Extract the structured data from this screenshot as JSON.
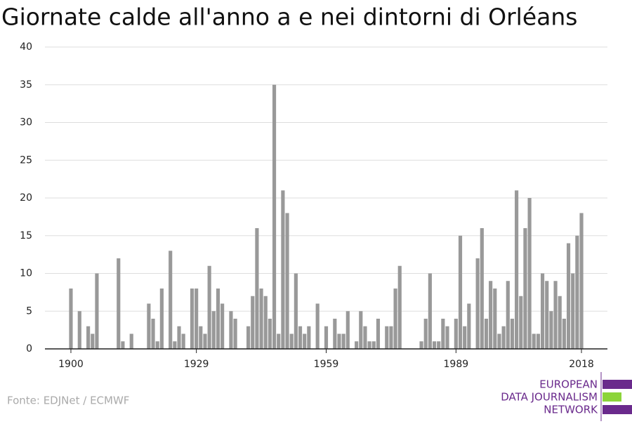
{
  "chart_data": {
    "type": "bar",
    "title": "Giornate calde all'anno a e nei dintorni di Orléans",
    "x": [
      1900,
      1902,
      1904,
      1905,
      1906,
      1911,
      1912,
      1914,
      1918,
      1919,
      1920,
      1921,
      1923,
      1924,
      1925,
      1926,
      1928,
      1929,
      1930,
      1931,
      1932,
      1933,
      1934,
      1935,
      1937,
      1938,
      1941,
      1942,
      1943,
      1944,
      1945,
      1946,
      1947,
      1948,
      1949,
      1950,
      1951,
      1952,
      1953,
      1954,
      1955,
      1957,
      1959,
      1961,
      1962,
      1963,
      1964,
      1966,
      1967,
      1968,
      1969,
      1970,
      1971,
      1973,
      1974,
      1975,
      1976,
      1981,
      1982,
      1983,
      1984,
      1985,
      1986,
      1987,
      1989,
      1990,
      1991,
      1992,
      1994,
      1995,
      1996,
      1997,
      1998,
      1999,
      2000,
      2001,
      2002,
      2003,
      2004,
      2005,
      2006,
      2007,
      2008,
      2009,
      2010,
      2011,
      2012,
      2013,
      2014,
      2015,
      2016,
      2017,
      2018
    ],
    "values": [
      8,
      5,
      3,
      2,
      10,
      12,
      1,
      2,
      6,
      4,
      1,
      8,
      13,
      1,
      3,
      2,
      8,
      8,
      3,
      2,
      11,
      5,
      8,
      6,
      5,
      4,
      3,
      7,
      16,
      8,
      7,
      4,
      35,
      2,
      21,
      18,
      2,
      10,
      3,
      2,
      3,
      6,
      3,
      4,
      2,
      2,
      5,
      1,
      5,
      3,
      1,
      1,
      4,
      3,
      3,
      8,
      11,
      1,
      4,
      10,
      1,
      1,
      4,
      3,
      4,
      15,
      3,
      6,
      12,
      16,
      4,
      9,
      8,
      2,
      3,
      9,
      4,
      21,
      7,
      16,
      20,
      2,
      2,
      10,
      9,
      5,
      9,
      7,
      4,
      14,
      10,
      15,
      18
    ],
    "color": "#999999",
    "xlim": [
      1894,
      2024
    ],
    "xticks": [
      1900,
      1929,
      1959,
      1989,
      2018
    ],
    "ylim": [
      0,
      40
    ],
    "yticks": [
      0,
      5,
      10,
      15,
      20,
      25,
      30,
      35,
      40
    ],
    "grid": true,
    "source": "Fonte: EDJNet / ECMWF",
    "logo": [
      "EUROPEAN",
      "DATA JOURNALISM",
      "NETWORK"
    ]
  }
}
